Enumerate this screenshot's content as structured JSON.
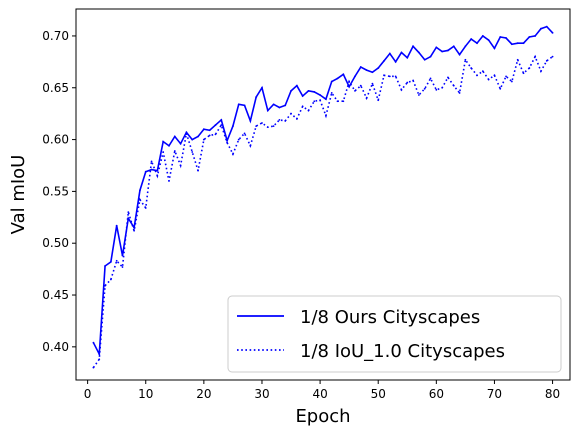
{
  "chart_data": {
    "type": "line",
    "xlabel": "Epoch",
    "ylabel": "Val mIoU",
    "xlim": [
      -2,
      83
    ],
    "ylim": [
      0.368,
      0.726
    ],
    "xticks": [
      0,
      10,
      20,
      30,
      40,
      50,
      60,
      70,
      80
    ],
    "yticks": [
      0.4,
      0.45,
      0.5,
      0.55,
      0.6,
      0.65,
      0.7
    ],
    "ytick_labels": [
      "0.40",
      "0.45",
      "0.50",
      "0.55",
      "0.60",
      "0.65",
      "0.70"
    ],
    "legend_position": "lower right",
    "grid": false,
    "x": [
      1,
      2,
      3,
      4,
      5,
      6,
      7,
      8,
      9,
      10,
      11,
      12,
      13,
      14,
      15,
      16,
      17,
      18,
      19,
      20,
      21,
      22,
      23,
      24,
      25,
      26,
      27,
      28,
      29,
      30,
      31,
      32,
      33,
      34,
      35,
      36,
      37,
      38,
      39,
      40,
      41,
      42,
      43,
      44,
      45,
      46,
      47,
      48,
      49,
      50,
      51,
      52,
      53,
      54,
      55,
      56,
      57,
      58,
      59,
      60,
      61,
      62,
      63,
      64,
      65,
      66,
      67,
      68,
      69,
      70,
      71,
      72,
      73,
      74,
      75,
      76,
      77,
      78,
      79,
      80
    ],
    "series": [
      {
        "name": "1/8 Ours Cityscapes",
        "color": "#0000ff",
        "style": "solid",
        "values": [
          0.404,
          0.393,
          0.478,
          0.482,
          0.517,
          0.488,
          0.524,
          0.515,
          0.551,
          0.569,
          0.571,
          0.57,
          0.598,
          0.594,
          0.603,
          0.596,
          0.607,
          0.6,
          0.603,
          0.61,
          0.609,
          0.614,
          0.619,
          0.599,
          0.613,
          0.634,
          0.633,
          0.618,
          0.641,
          0.65,
          0.628,
          0.634,
          0.631,
          0.633,
          0.647,
          0.652,
          0.642,
          0.647,
          0.646,
          0.643,
          0.639,
          0.656,
          0.659,
          0.663,
          0.651,
          0.661,
          0.67,
          0.667,
          0.665,
          0.669,
          0.676,
          0.683,
          0.675,
          0.684,
          0.679,
          0.69,
          0.684,
          0.677,
          0.68,
          0.689,
          0.685,
          0.686,
          0.69,
          0.682,
          0.69,
          0.697,
          0.693,
          0.7,
          0.696,
          0.688,
          0.699,
          0.698,
          0.692,
          0.693,
          0.693,
          0.699,
          0.7,
          0.707,
          0.709,
          0.703
        ]
      },
      {
        "name": "1/8 IoU_1.0 Cityscapes",
        "color": "#0000ff",
        "style": "dotted",
        "values": [
          0.38,
          0.388,
          0.459,
          0.465,
          0.483,
          0.477,
          0.53,
          0.512,
          0.542,
          0.534,
          0.579,
          0.565,
          0.588,
          0.56,
          0.589,
          0.575,
          0.606,
          0.588,
          0.57,
          0.6,
          0.604,
          0.605,
          0.614,
          0.597,
          0.586,
          0.6,
          0.606,
          0.594,
          0.613,
          0.616,
          0.612,
          0.613,
          0.619,
          0.618,
          0.625,
          0.62,
          0.632,
          0.628,
          0.637,
          0.638,
          0.623,
          0.645,
          0.637,
          0.637,
          0.656,
          0.647,
          0.652,
          0.64,
          0.654,
          0.638,
          0.662,
          0.661,
          0.661,
          0.648,
          0.655,
          0.657,
          0.643,
          0.649,
          0.659,
          0.648,
          0.65,
          0.66,
          0.652,
          0.645,
          0.677,
          0.669,
          0.662,
          0.666,
          0.658,
          0.662,
          0.649,
          0.661,
          0.656,
          0.677,
          0.664,
          0.669,
          0.68,
          0.666,
          0.676,
          0.68
        ]
      }
    ]
  }
}
